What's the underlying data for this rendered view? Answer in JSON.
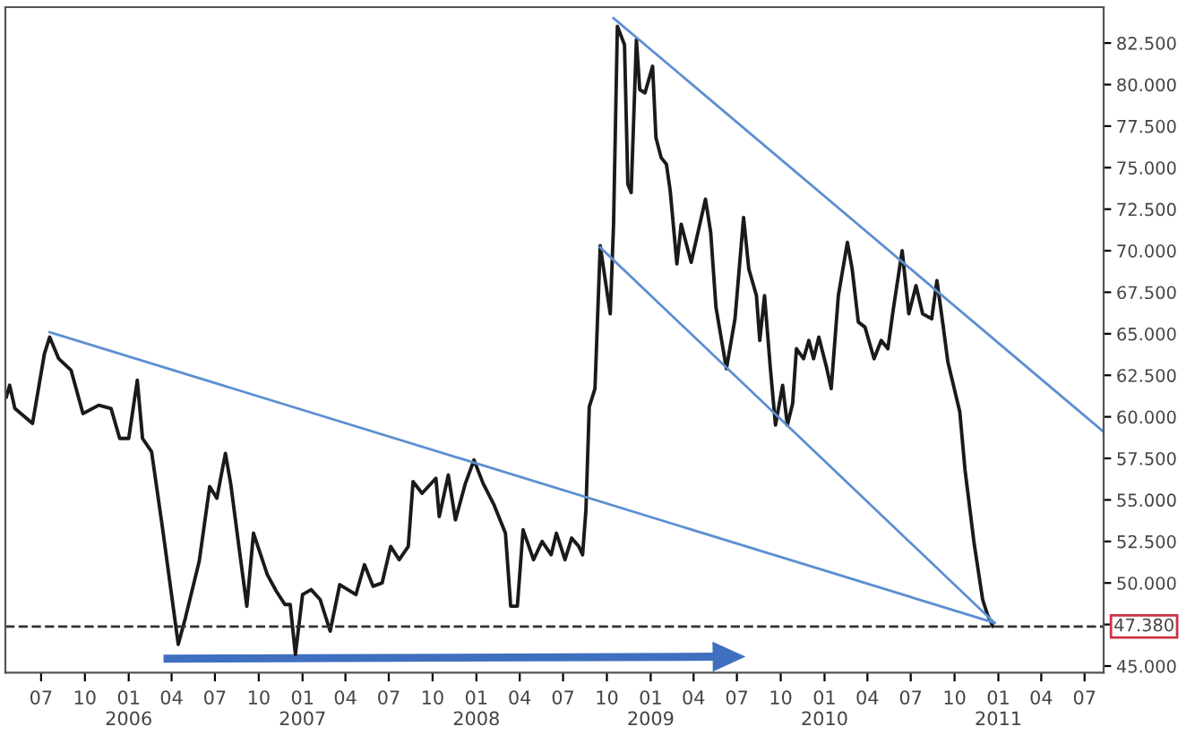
{
  "chart_data": {
    "type": "line",
    "xlim": [
      "2005-04-17",
      "2011-08-10"
    ],
    "ylim": [
      44.6,
      84.66
    ],
    "xticks": [
      {
        "value": "2005-07",
        "label": "07"
      },
      {
        "value": "2005-10",
        "label": "10"
      },
      {
        "value": "2006-01",
        "label": "01\n2006"
      },
      {
        "value": "2006-04",
        "label": "04"
      },
      {
        "value": "2006-07",
        "label": "07"
      },
      {
        "value": "2006-10",
        "label": "10"
      },
      {
        "value": "2007-01",
        "label": "01\n2007"
      },
      {
        "value": "2007-04",
        "label": "04"
      },
      {
        "value": "2007-07",
        "label": "07"
      },
      {
        "value": "2007-10",
        "label": "10"
      },
      {
        "value": "2008-01",
        "label": "01\n2008"
      },
      {
        "value": "2008-04",
        "label": "04"
      },
      {
        "value": "2008-07",
        "label": "07"
      },
      {
        "value": "2008-10",
        "label": "10"
      },
      {
        "value": "2009-01",
        "label": "01\n2009"
      },
      {
        "value": "2009-04",
        "label": "04"
      },
      {
        "value": "2009-07",
        "label": "07"
      },
      {
        "value": "2009-10",
        "label": "10"
      },
      {
        "value": "2010-01",
        "label": "01\n2010"
      },
      {
        "value": "2010-04",
        "label": "04"
      },
      {
        "value": "2010-07",
        "label": "07"
      },
      {
        "value": "2010-10",
        "label": "10"
      },
      {
        "value": "2011-01",
        "label": "01\n2011"
      },
      {
        "value": "2011-04",
        "label": "04"
      },
      {
        "value": "2011-07",
        "label": "07"
      }
    ],
    "yticks": [
      {
        "value": 45,
        "label": "45.000"
      },
      {
        "value": 47.5,
        "label": null
      },
      {
        "value": 50,
        "label": "50.000"
      },
      {
        "value": 52.5,
        "label": "52.500"
      },
      {
        "value": 55,
        "label": "55.000"
      },
      {
        "value": 57.5,
        "label": "57.500"
      },
      {
        "value": 60,
        "label": "60.000"
      },
      {
        "value": 62.5,
        "label": "62.500"
      },
      {
        "value": 65,
        "label": "65.000"
      },
      {
        "value": 67.5,
        "label": "67.500"
      },
      {
        "value": 70,
        "label": "70.000"
      },
      {
        "value": 72.5,
        "label": "72.500"
      },
      {
        "value": 75,
        "label": "75.000"
      },
      {
        "value": 77.5,
        "label": "77.500"
      },
      {
        "value": 80,
        "label": "80.000"
      },
      {
        "value": 82.5,
        "label": "82.500"
      }
    ],
    "ref_lines": [
      {
        "axis": "y",
        "value": 47.38,
        "label": "47.380",
        "color": "#333333",
        "line_style": "dashed"
      }
    ],
    "series": [
      {
        "color": "#1a1a1a",
        "x": [
          "2005-04-19",
          "2005-04-26",
          "2005-05-07",
          "2005-06-13",
          "2005-07-08",
          "2005-07-19",
          "2005-08-07",
          "2005-09-02",
          "2005-09-27",
          "2005-10-30",
          "2005-11-25",
          "2005-12-13",
          "2006-01-01",
          "2006-01-19",
          "2006-01-30",
          "2006-02-18",
          "2006-03-13",
          "2006-04-15",
          "2006-04-30",
          "2006-05-29",
          "2006-06-20",
          "2006-07-05",
          "2006-07-23",
          "2006-08-03",
          "2006-08-18",
          "2006-09-06",
          "2006-09-20",
          "2006-10-19",
          "2006-11-07",
          "2006-11-25",
          "2006-12-06",
          "2006-12-17",
          "2007-01-01",
          "2007-01-19",
          "2007-02-07",
          "2007-02-28",
          "2007-03-20",
          "2007-04-23",
          "2007-05-11",
          "2007-05-29",
          "2007-06-17",
          "2007-07-05",
          "2007-07-23",
          "2007-08-11",
          "2007-08-21",
          "2007-09-09",
          "2007-10-08",
          "2007-10-15",
          "2007-11-03",
          "2007-11-18",
          "2007-12-09",
          "2007-12-27",
          "2008-01-15",
          "2008-02-07",
          "2008-03-02",
          "2008-03-13",
          "2008-03-27",
          "2008-04-08",
          "2008-04-30",
          "2008-05-18",
          "2008-06-06",
          "2008-06-17",
          "2008-07-05",
          "2008-07-19",
          "2008-08-03",
          "2008-08-11",
          "2008-08-18",
          "2008-08-25",
          "2008-09-06",
          "2008-09-17",
          "2008-10-08",
          "2008-10-15",
          "2008-10-23",
          "2008-11-07",
          "2008-11-14",
          "2008-11-21",
          "2008-12-02",
          "2008-12-09",
          "2008-12-20",
          "2009-01-05",
          "2009-01-12",
          "2009-01-23",
          "2009-02-03",
          "2009-02-11",
          "2009-02-25",
          "2009-03-06",
          "2009-03-27",
          "2009-04-26",
          "2009-05-07",
          "2009-05-18",
          "2009-06-09",
          "2009-06-27",
          "2009-07-15",
          "2009-07-26",
          "2009-08-11",
          "2009-08-18",
          "2009-08-28",
          "2009-09-09",
          "2009-09-20",
          "2009-10-05",
          "2009-10-15",
          "2009-10-26",
          "2009-11-03",
          "2009-11-18",
          "2009-11-29",
          "2009-12-09",
          "2009-12-20",
          "2010-01-05",
          "2010-01-15",
          "2010-01-30",
          "2010-02-18",
          "2010-02-28",
          "2010-03-13",
          "2010-03-27",
          "2010-04-15",
          "2010-04-30",
          "2010-05-14",
          "2010-05-25",
          "2010-06-13",
          "2010-06-27",
          "2010-07-12",
          "2010-07-26",
          "2010-08-14",
          "2010-08-25",
          "2010-09-06",
          "2010-09-17",
          "2010-10-12",
          "2010-10-23",
          "2010-11-11",
          "2010-11-29",
          "2010-12-09",
          "2010-12-20"
        ],
        "values": [
          61.2,
          61.9,
          60.5,
          59.6,
          63.8,
          64.8,
          63.5,
          62.8,
          60.2,
          60.7,
          60.5,
          58.7,
          58.7,
          62.2,
          58.7,
          57.9,
          53.3,
          46.3,
          47.9,
          51.3,
          55.8,
          55.1,
          57.8,
          56.0,
          52.7,
          48.6,
          53.0,
          50.5,
          49.5,
          48.7,
          48.7,
          45.7,
          49.3,
          49.6,
          49.0,
          47.1,
          49.9,
          49.3,
          51.1,
          49.8,
          50.0,
          52.2,
          51.4,
          52.2,
          56.1,
          55.4,
          56.3,
          54.0,
          56.5,
          53.8,
          56.0,
          57.4,
          56.0,
          54.7,
          53.0,
          48.6,
          48.6,
          53.2,
          51.4,
          52.5,
          51.7,
          53.0,
          51.4,
          52.7,
          52.2,
          51.7,
          54.4,
          60.6,
          61.7,
          70.3,
          66.2,
          71.6,
          83.5,
          82.4,
          74.0,
          73.5,
          82.7,
          79.7,
          79.5,
          81.1,
          76.8,
          75.6,
          75.2,
          73.6,
          69.2,
          71.6,
          69.3,
          73.1,
          71.1,
          66.6,
          62.9,
          65.9,
          72.0,
          68.9,
          67.3,
          64.6,
          67.3,
          63.0,
          59.5,
          61.9,
          59.5,
          60.8,
          64.1,
          63.5,
          64.6,
          63.5,
          64.8,
          63.0,
          61.7,
          67.3,
          70.5,
          68.9,
          65.7,
          65.4,
          63.5,
          64.6,
          64.1,
          66.4,
          70.0,
          66.2,
          67.9,
          66.2,
          65.9,
          68.2,
          65.7,
          63.3,
          60.3,
          56.8,
          52.4,
          49.0,
          48.1,
          47.4
        ]
      },
      {
        "type": "line",
        "color": "#5b8fd1",
        "x": [
          "2005-07-19",
          "2010-12-24"
        ],
        "values": [
          65.1,
          47.6
        ]
      },
      {
        "type": "line",
        "color": "#5b8fd1",
        "x": [
          "2008-09-17",
          "2010-12-24"
        ],
        "values": [
          70.2,
          47.6
        ]
      },
      {
        "type": "line",
        "color": "#5b8fd1",
        "x": [
          "2008-10-15",
          "2011-08-10"
        ],
        "values": [
          84.0,
          59.1
        ]
      }
    ]
  }
}
